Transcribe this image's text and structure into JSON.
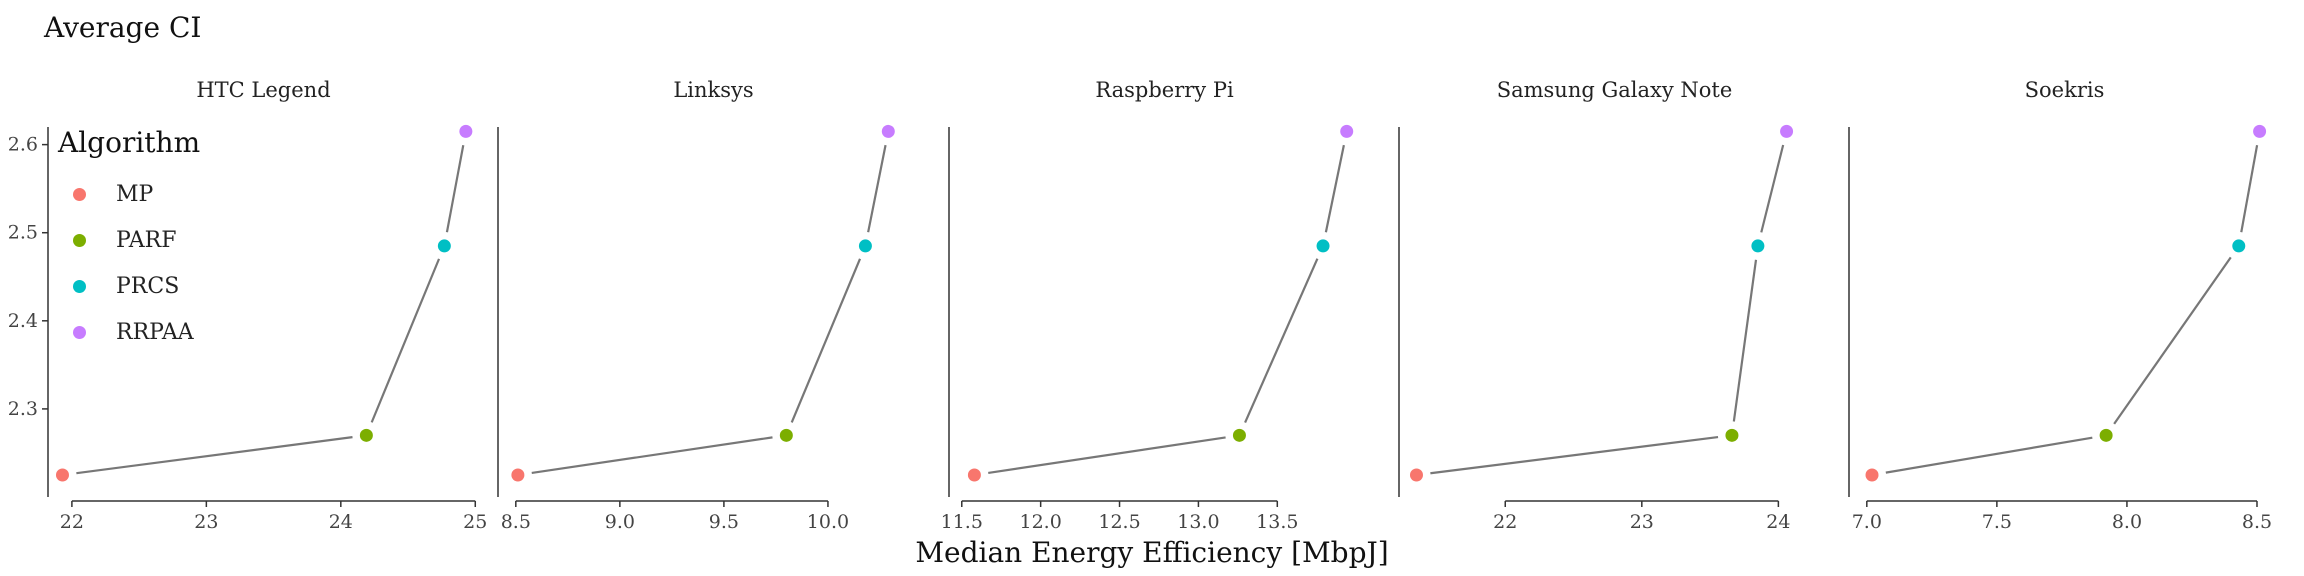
{
  "chart_data": {
    "type": "line",
    "title": "",
    "ylabel": "Average CI",
    "xlabel": "Median Energy Efficiency [MbpJ]",
    "legend": {
      "title": "Algorithm",
      "position": "top-left",
      "items": [
        {
          "name": "MP",
          "color": "#F8766D"
        },
        {
          "name": "PARF",
          "color": "#7CAE00"
        },
        {
          "name": "PRCS",
          "color": "#00BFC4"
        },
        {
          "name": "RRPAA",
          "color": "#C77CFF"
        }
      ]
    },
    "ylim": [
      2.2,
      2.62
    ],
    "yticks": [
      2.3,
      2.4,
      2.5,
      2.6
    ],
    "ytick_labels": [
      "2.3",
      "2.4",
      "2.5",
      "2.6"
    ],
    "grid": false,
    "panels": [
      {
        "name": "HTC Legend",
        "xlim": [
          21.8,
          25.05
        ],
        "xticks": [
          22,
          23,
          24,
          25
        ],
        "xtick_labels": [
          "22",
          "23",
          "24",
          "25"
        ],
        "points": [
          {
            "algorithm": "MP",
            "x": 21.93,
            "y": 2.225
          },
          {
            "algorithm": "PARF",
            "x": 24.19,
            "y": 2.27
          },
          {
            "algorithm": "PRCS",
            "x": 24.77,
            "y": 2.485
          },
          {
            "algorithm": "RRPAA",
            "x": 24.93,
            "y": 2.615
          }
        ]
      },
      {
        "name": "Linksys",
        "xlim": [
          8.4,
          10.5
        ],
        "xticks": [
          8.5,
          9.0,
          9.5,
          10.0
        ],
        "xtick_labels": [
          "8.5",
          "9.0",
          "9.5",
          "10.0"
        ],
        "points": [
          {
            "algorithm": "MP",
            "x": 8.51,
            "y": 2.225
          },
          {
            "algorithm": "PARF",
            "x": 9.8,
            "y": 2.27
          },
          {
            "algorithm": "PRCS",
            "x": 10.18,
            "y": 2.485
          },
          {
            "algorithm": "RRPAA",
            "x": 10.29,
            "y": 2.615
          }
        ]
      },
      {
        "name": "Raspberry Pi",
        "xlim": [
          11.4,
          14.17
        ],
        "xticks": [
          11.5,
          12.0,
          12.5,
          13.0,
          13.5
        ],
        "xtick_labels": [
          "11.5",
          "12.0",
          "12.5",
          "13.0",
          "13.5"
        ],
        "points": [
          {
            "algorithm": "MP",
            "x": 11.58,
            "y": 2.225
          },
          {
            "algorithm": "PARF",
            "x": 13.26,
            "y": 2.27
          },
          {
            "algorithm": "PRCS",
            "x": 13.79,
            "y": 2.485
          },
          {
            "algorithm": "RRPAA",
            "x": 13.94,
            "y": 2.615
          }
        ]
      },
      {
        "name": "Samsung Galaxy Note",
        "xlim": [
          21.2,
          24.4
        ],
        "xticks": [
          22,
          23,
          24
        ],
        "xtick_labels": [
          "22",
          "23",
          "24"
        ],
        "points": [
          {
            "algorithm": "MP",
            "x": 21.35,
            "y": 2.225
          },
          {
            "algorithm": "PARF",
            "x": 23.66,
            "y": 2.27
          },
          {
            "algorithm": "PRCS",
            "x": 23.85,
            "y": 2.485
          },
          {
            "algorithm": "RRPAA",
            "x": 24.06,
            "y": 2.615
          }
        ]
      },
      {
        "name": "Soekris",
        "xlim": [
          6.92,
          8.6
        ],
        "xticks": [
          7.0,
          7.5,
          8.0,
          8.5
        ],
        "xtick_labels": [
          "7.0",
          "7.5",
          "8.0",
          "8.5"
        ],
        "points": [
          {
            "algorithm": "MP",
            "x": 7.02,
            "y": 2.225
          },
          {
            "algorithm": "PARF",
            "x": 7.92,
            "y": 2.27
          },
          {
            "algorithm": "PRCS",
            "x": 8.43,
            "y": 2.485
          },
          {
            "algorithm": "RRPAA",
            "x": 8.51,
            "y": 2.615
          }
        ]
      }
    ]
  }
}
